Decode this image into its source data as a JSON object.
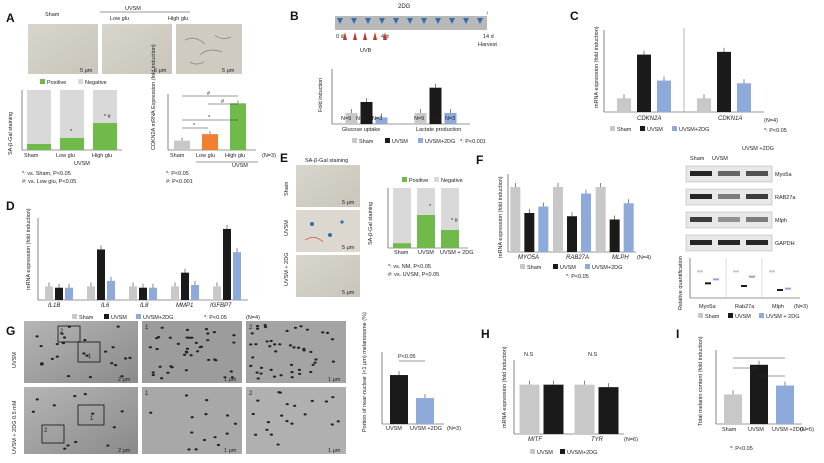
{
  "colors": {
    "sham": "#c8c8c8",
    "uvsm": "#1a1a1a",
    "dg": "#8eaadb",
    "positive": "#6fba4a",
    "negative": "#d9d9d9",
    "low": "#f08030",
    "high": "#6fba4a",
    "blue_marker": "#2f6fb0",
    "red_marker": "#c0392b"
  },
  "panels": {
    "A": "A",
    "B": "B",
    "C": "C",
    "D": "D",
    "E": "E",
    "F": "F",
    "G": "G",
    "H": "H",
    "I": "I"
  },
  "A": {
    "img_labels": [
      "Sham",
      "Low glu",
      "High glu"
    ],
    "uvsm_header": "UVSM",
    "scale": "5 μm",
    "legend": [
      "Positive",
      "Negative"
    ],
    "ylabel": "SA-β-Gal staining",
    "xcats": [
      "Sham",
      "Low glu",
      "High glu"
    ],
    "group": "UVSM",
    "marks": [
      "*",
      "* #"
    ],
    "foot1": "*: vs. Sham, P<0.05",
    "foot2": "#: vs. Low glu, P<0.05",
    "ylabel2": "CDKN2A mRNA Expression (fold induction)",
    "x2": [
      "Sham",
      "Low glu",
      "High glu"
    ],
    "n": "(N=3)",
    "foot3": "*: P<0.05",
    "foot4": "#: P<0.001",
    "sig": [
      "*",
      "*",
      "#",
      "#"
    ]
  },
  "B": {
    "title": "2DG",
    "days": [
      "0 d",
      "4 d",
      "14 d"
    ],
    "harvest": "Harvest",
    "uvb": "UVB",
    "ylabel": "Fold induction",
    "groups": [
      "Glucose uptake",
      "Lactate production"
    ],
    "n_labels": [
      "N=9",
      "N=3",
      "N=3",
      "N=9",
      "N=3",
      "N=3"
    ],
    "legend": [
      "Sham",
      "UVSM",
      "UVSM+2DG"
    ],
    "foot": "*: P<0.001"
  },
  "C": {
    "ylabel": "mRNA expression (fold induction)",
    "groups": [
      "CDKN2A",
      "CDKN1A"
    ],
    "legend": [
      "Sham",
      "UVSM",
      "UVSM+2DG"
    ],
    "n": "(N=4)",
    "foot": "*: P<0.05"
  },
  "D": {
    "ylabel": "mRNA expression (fold induction)",
    "genes": [
      "IL1B",
      "IL6",
      "IL8",
      "MMP1",
      "IGFBP7"
    ],
    "legend": [
      "Sham",
      "UVSM",
      "UVSM+2DG"
    ],
    "foot": "*: P<0.05",
    "n": "(N=4)"
  },
  "E": {
    "title": "SA-β-Gal staining",
    "rows": [
      "Sham",
      "UVSM",
      "UVSM + 2DG"
    ],
    "scale": "5 μm",
    "legend": [
      "Positive",
      "Negative"
    ],
    "ylabel": "SA-β-Gal staining",
    "xcats": [
      "Sham",
      "UVSM",
      "UVSM + 2DG"
    ],
    "marks": [
      "*",
      "* #"
    ],
    "foot1": "*: vs. NM, P<0.05",
    "foot2": "#: vs. UVSM, P<0.05"
  },
  "F": {
    "ylabel": "mRNA expression (fold induction)",
    "genes": [
      "MYO5A",
      "RAB27A",
      "MLPH"
    ],
    "n": "(N=4)",
    "legend": [
      "Sham",
      "UVSM",
      "UVSM+2DG"
    ],
    "foot": "*: P<0.05",
    "wb_header": [
      "Sham",
      "UVSM",
      "UVSM +2DG"
    ],
    "wb_labels": [
      "Myo5a",
      "RAB27a",
      "Mlph",
      "GAPDH"
    ],
    "q_ylabel": "Relative quantification",
    "q_cats": [
      "Myo5a",
      "Rab27a",
      "Mlph"
    ],
    "q_n": "(N=3)",
    "q_legend": [
      "Sham",
      "UVSM",
      "UVSM + 2DG"
    ]
  },
  "G": {
    "rows": [
      "UVSM",
      "UVSM + 2DG 0.5 mM"
    ],
    "scales": [
      "2 μm",
      "1 μm",
      "1 μm"
    ],
    "box_labels": [
      "1",
      "2"
    ],
    "inset_nums": [
      "1",
      "2"
    ],
    "ylabel": "Portion of near-nuclear (<1 μm) melanosome (%)",
    "pval": "P<0.05",
    "xcats": [
      "UVSM",
      "UVSM +2DG"
    ],
    "n": "(N=3)"
  },
  "H": {
    "ylabel": "mRNA expression (fold induction)",
    "genes": [
      "MITF",
      "TYR"
    ],
    "ns": [
      "N.S",
      "N.S"
    ],
    "legend": [
      "UVSM",
      "UVSM+2DG"
    ],
    "n": "(N=6)"
  },
  "I": {
    "ylabel": "Total melanin content (fold induction)",
    "xcats": [
      "Sham",
      "UVSM",
      "UVSM +2DG"
    ],
    "foot": "*: P<0.05",
    "n": "(N=5)"
  },
  "chart_data": [
    {
      "panel": "A-left",
      "type": "bar",
      "stacked": true,
      "categories": [
        "Sham",
        "Low glu",
        "High glu"
      ],
      "series": [
        {
          "name": "Positive",
          "values": [
            10,
            20,
            45
          ]
        },
        {
          "name": "Negative",
          "values": [
            90,
            80,
            55
          ]
        }
      ],
      "ylim": [
        0,
        100
      ]
    },
    {
      "panel": "A-right",
      "type": "bar",
      "categories": [
        "Sham",
        "Low glu",
        "High glu"
      ],
      "values": [
        1.0,
        1.7,
        5.0
      ],
      "ylim": [
        0,
        6
      ]
    },
    {
      "panel": "B",
      "type": "bar",
      "categories": [
        "Glucose uptake",
        "Lactate production"
      ],
      "series": [
        {
          "name": "Sham",
          "values": [
            1.0,
            1.0
          ]
        },
        {
          "name": "UVSM",
          "values": [
            2.0,
            3.3
          ]
        },
        {
          "name": "UVSM+2DG",
          "values": [
            0.6,
            1.0
          ]
        }
      ],
      "ylim": [
        0,
        5
      ]
    },
    {
      "panel": "C",
      "type": "bar",
      "categories": [
        "CDKN2A",
        "CDKN1A"
      ],
      "series": [
        {
          "name": "Sham",
          "values": [
            1.0,
            1.0
          ]
        },
        {
          "name": "UVSM",
          "values": [
            4.2,
            4.4
          ]
        },
        {
          "name": "UVSM+2DG",
          "values": [
            2.3,
            2.1
          ]
        }
      ],
      "ylim": [
        0,
        6
      ]
    },
    {
      "panel": "D",
      "type": "bar",
      "categories": [
        "IL1B",
        "IL6",
        "IL8",
        "MMP1",
        "IGFBP7"
      ],
      "series": [
        {
          "name": "Sham",
          "values": [
            1.0,
            1.0,
            1.0,
            1.0,
            1.0
          ]
        },
        {
          "name": "UVSM",
          "values": [
            0.9,
            3.7,
            0.9,
            2.0,
            5.2
          ]
        },
        {
          "name": "UVSM+2DG",
          "values": [
            0.9,
            1.4,
            0.9,
            1.1,
            3.5
          ]
        }
      ],
      "ylim": [
        0,
        6
      ]
    },
    {
      "panel": "E",
      "type": "bar",
      "stacked": true,
      "categories": [
        "Sham",
        "UVSM",
        "UVSM + 2DG"
      ],
      "series": [
        {
          "name": "Positive",
          "values": [
            8,
            55,
            30
          ]
        },
        {
          "name": "Negative",
          "values": [
            92,
            45,
            70
          ]
        }
      ],
      "ylim": [
        0,
        100
      ]
    },
    {
      "panel": "F-left",
      "type": "bar",
      "categories": [
        "MYO5A",
        "RAB27A",
        "MLPH"
      ],
      "series": [
        {
          "name": "Sham",
          "values": [
            1.0,
            1.0,
            1.0
          ]
        },
        {
          "name": "UVSM",
          "values": [
            0.6,
            0.55,
            0.5
          ]
        },
        {
          "name": "UVSM+2DG",
          "values": [
            0.7,
            0.9,
            0.75
          ]
        }
      ],
      "ylim": [
        0,
        1.2
      ]
    },
    {
      "panel": "F-right",
      "type": "scatter",
      "categories": [
        "Myo5a",
        "Rab27a",
        "Mlph"
      ],
      "series": [
        {
          "name": "Sham",
          "values": [
            1.0,
            1.0,
            1.0
          ]
        },
        {
          "name": "UVSM",
          "values": [
            0.55,
            0.45,
            0.3
          ]
        },
        {
          "name": "UVSM + 2DG",
          "values": [
            0.7,
            0.8,
            0.35
          ]
        }
      ],
      "ylim": [
        0,
        1.5
      ]
    },
    {
      "panel": "G",
      "type": "bar",
      "categories": [
        "UVSM",
        "UVSM +2DG"
      ],
      "values": [
        34,
        18
      ],
      "ylim": [
        0,
        50
      ]
    },
    {
      "panel": "H",
      "type": "bar",
      "categories": [
        "MITF",
        "TYR"
      ],
      "series": [
        {
          "name": "UVSM",
          "values": [
            1.0,
            1.0
          ]
        },
        {
          "name": "UVSM+2DG",
          "values": [
            1.0,
            0.95
          ]
        }
      ],
      "ylim": [
        0,
        1.5
      ]
    },
    {
      "panel": "I",
      "type": "bar",
      "categories": [
        "Sham",
        "UVSM",
        "UVSM +2DG"
      ],
      "values": [
        1.0,
        2.0,
        1.3
      ],
      "ylim": [
        0,
        2.5
      ]
    }
  ]
}
